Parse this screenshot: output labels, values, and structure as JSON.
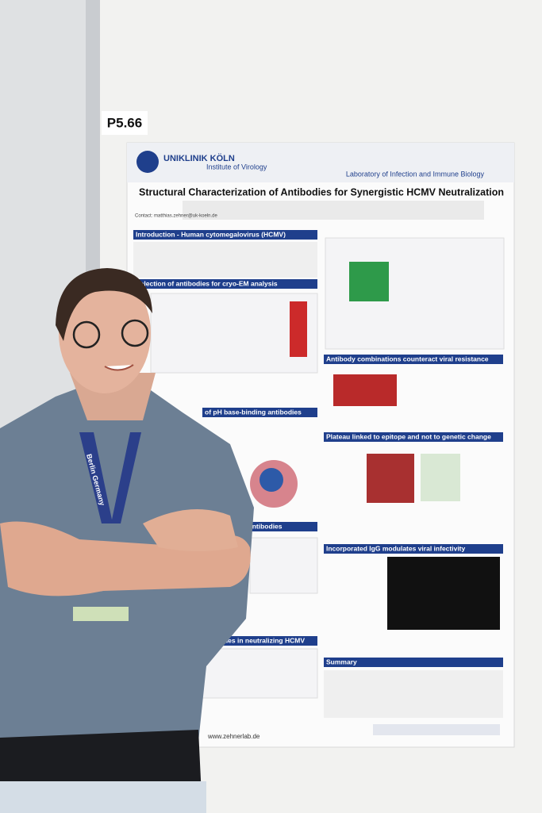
{
  "board_label": "P5.66",
  "poster": {
    "logo": "UNIKLINIK KÖLN",
    "institute": "Institute of Virology",
    "lab": "Laboratory of Infection and Immune Biology",
    "title": "Structural Characterization of Antibodies for Synergistic HCMV Neutralization",
    "contact": "Contact: matthias.zehner@uk-koeln.de",
    "sections_left": [
      "Introduction - Human cytomegalovirus (HCMV)",
      "Selection of antibodies for cryo-EM analysis",
      "of pH base-binding antibodies",
      "antibodies",
      "on of antibodies in neutralizing HCMV"
    ],
    "sections_right": [
      "Antibody combinations counteract viral resistance",
      "Plateau linked to epitope and not to genetic change",
      "Incorporated IgG modulates viral infectivity",
      "Summary"
    ],
    "website": "www.zehnerlab.de"
  },
  "lanyard": "Berlin Germany"
}
